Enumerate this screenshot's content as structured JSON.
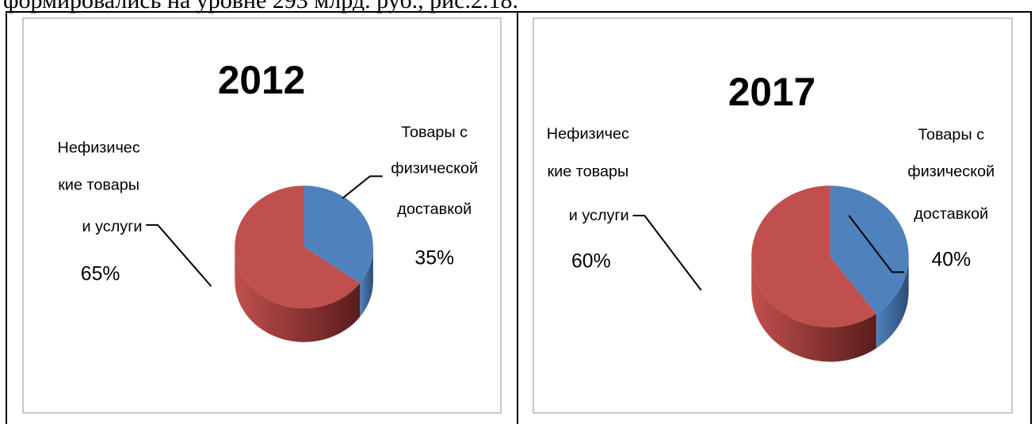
{
  "page_text": {
    "cut_line": "формировались на уровне 293 млрд. руб., рис.2.18."
  },
  "colors": {
    "physical": "#4f81bd",
    "physical_dark": "#2c4d75",
    "nonphysical": "#c0504d",
    "nonphysical_dark": "#5a1c1c"
  },
  "chart_data": [
    {
      "type": "pie",
      "title": "2012",
      "slices": [
        {
          "label": "Товары с физической доставкой",
          "value": 35,
          "color": "#4f81bd",
          "label_lines": [
            "Товары с",
            "физической",
            "доставкой"
          ],
          "pct_text": "35%"
        },
        {
          "label": "Нефизические товары и услуги",
          "value": 65,
          "color": "#c0504d",
          "label_lines": [
            "Нефизичес",
            "кие товары",
            "и услуги"
          ],
          "pct_text": "65%"
        }
      ]
    },
    {
      "type": "pie",
      "title": "2017",
      "slices": [
        {
          "label": "Товары с физической доставкой",
          "value": 40,
          "color": "#4f81bd",
          "label_lines": [
            "Товары с",
            "физической",
            "доставкой"
          ],
          "pct_text": "40%"
        },
        {
          "label": "Нефизические товары и услуги",
          "value": 60,
          "color": "#c0504d",
          "label_lines": [
            "Нефизичес",
            "кие товары",
            "и услуги"
          ],
          "pct_text": "60%"
        }
      ]
    }
  ]
}
